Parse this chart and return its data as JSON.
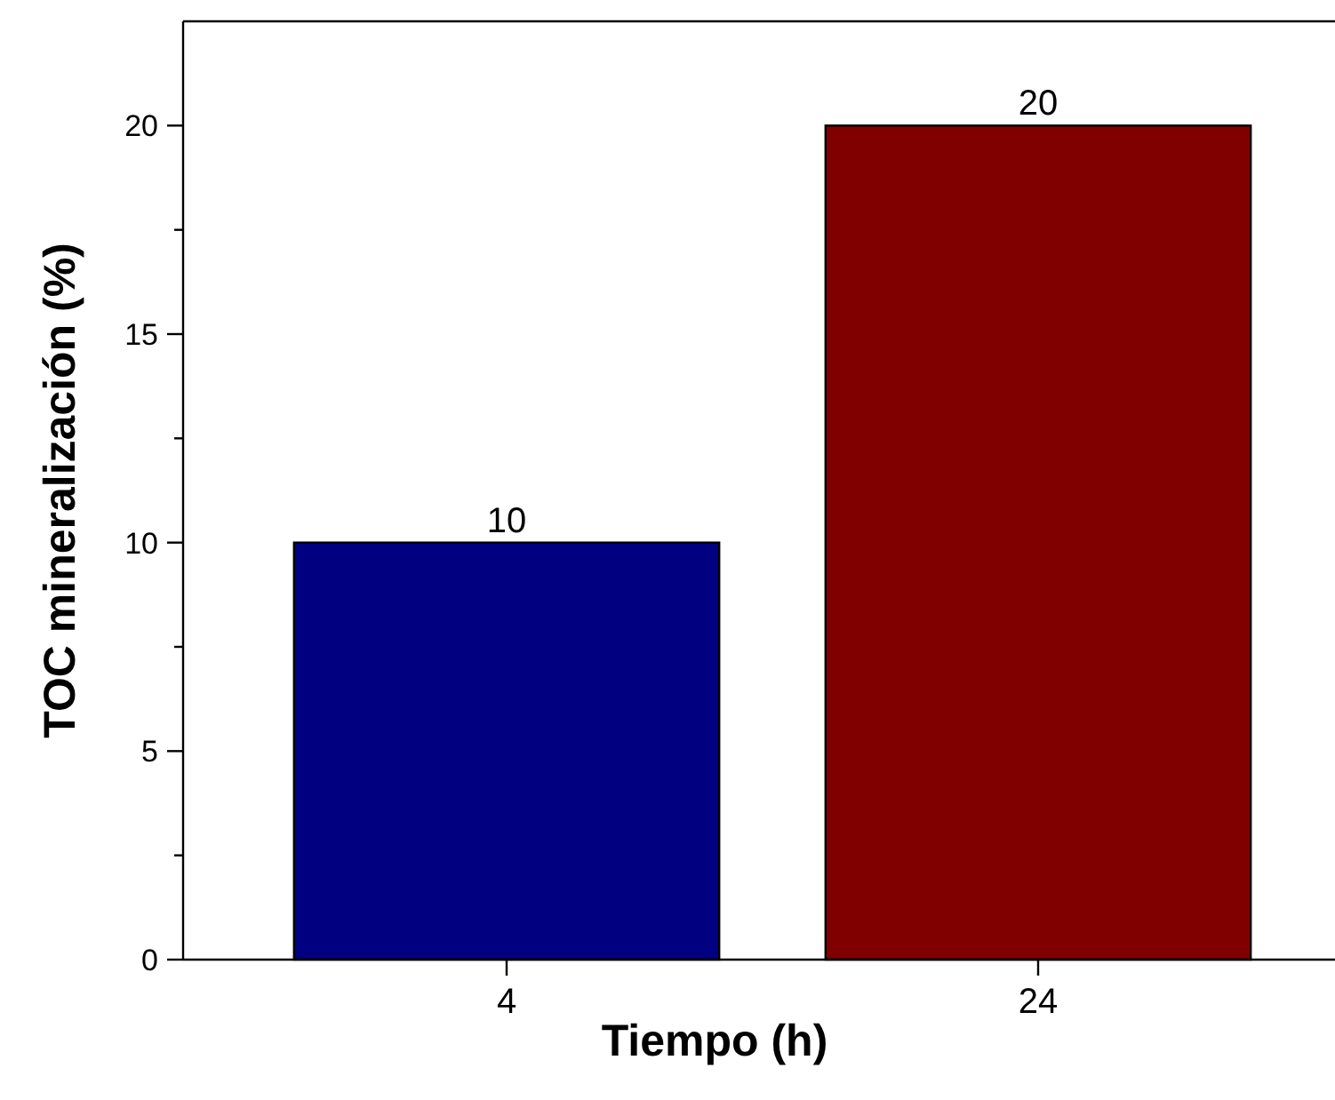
{
  "chart_data": {
    "type": "bar",
    "xlabel": "Tiempo (h)",
    "ylabel": "TOC mineralización (%)",
    "categories": [
      "4",
      "24"
    ],
    "values": [
      10,
      20
    ],
    "colors": [
      "#000080",
      "#800000"
    ],
    "ylim": [
      0,
      22.5
    ],
    "yticks": [
      0,
      {
        "value": 2.5,
        "label": null
      },
      5,
      {
        "value": 7.5,
        "label": null
      },
      10,
      {
        "value": 12.5,
        "label": null
      },
      15,
      {
        "value": 17.5,
        "label": null
      },
      20
    ],
    "data_labels": true
  }
}
